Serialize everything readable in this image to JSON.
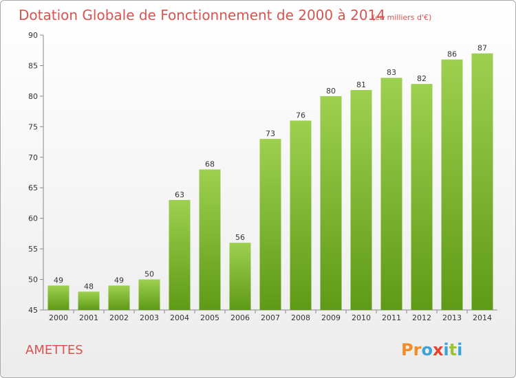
{
  "commune": "AMETTES",
  "logo": "Proxiti",
  "colors": {
    "title": "#d9534f",
    "bar_light": "#9ed050",
    "bar_dark": "#5f9a17",
    "logo_letters": [
      "#f28c28",
      "#f28c28",
      "#3ea2d8",
      "#e8412f",
      "#3ea2d8",
      "#9cc531",
      "#3ea2d8"
    ]
  },
  "chart_data": {
    "type": "bar",
    "title": "Dotation Globale de Fonctionnement de 2000 à 2014",
    "subtitle": "(en milliers d'€)",
    "xlabel": "",
    "ylabel": "",
    "categories": [
      "2000",
      "2001",
      "2002",
      "2003",
      "2004",
      "2005",
      "2006",
      "2007",
      "2008",
      "2009",
      "2010",
      "2011",
      "2012",
      "2013",
      "2014"
    ],
    "values": [
      49,
      48,
      49,
      50,
      63,
      68,
      56,
      73,
      76,
      80,
      81,
      83,
      82,
      86,
      87
    ],
    "ylim": [
      45,
      90
    ],
    "yticks": [
      45,
      50,
      55,
      60,
      65,
      70,
      75,
      80,
      85,
      90
    ],
    "grid": false,
    "data_labels": true
  }
}
